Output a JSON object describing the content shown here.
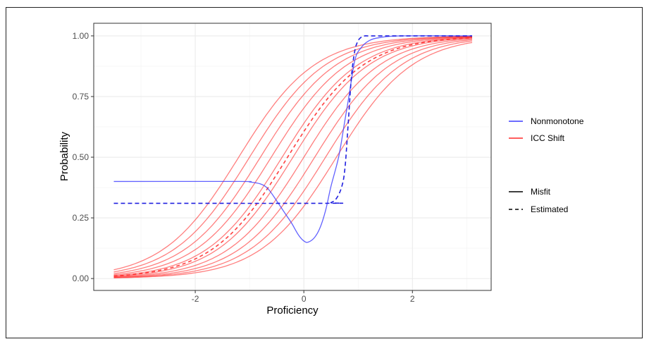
{
  "chart_data": {
    "type": "line",
    "title": "",
    "xlabel": "Proficiency",
    "ylabel": "Probability",
    "xlim": [
      -3.87,
      3.45
    ],
    "ylim": [
      -0.049,
      1.052
    ],
    "xticks": [
      {
        "v": -2,
        "label": "-2"
      },
      {
        "v": 0,
        "label": "0"
      },
      {
        "v": 2,
        "label": "2"
      }
    ],
    "yticks": [
      {
        "v": 0,
        "label": "0.00"
      },
      {
        "v": 0.25,
        "label": "0.25"
      },
      {
        "v": 0.5,
        "label": "0.50"
      },
      {
        "v": 0.75,
        "label": "0.75"
      },
      {
        "v": 1,
        "label": "1.00"
      }
    ],
    "grid": true,
    "legend_position": "right",
    "colors": {
      "nonmonotone": "#3b3bff",
      "icc_shift": "#ff2a2a"
    },
    "legend": {
      "color": [
        {
          "label": "Nonmonotone",
          "color": "#3b3bff"
        },
        {
          "label": "ICC Shift",
          "color": "#ff2a2a"
        }
      ],
      "linetype": [
        {
          "label": "Misfit",
          "dash": false
        },
        {
          "label": "Estimated",
          "dash": true
        }
      ]
    },
    "icc_shift": {
      "x_range": [
        -3.5,
        3.1
      ],
      "slope": 1.43,
      "misfit_locations": [
        -1.2,
        -1.0,
        -0.8,
        -0.6,
        -0.4,
        -0.2,
        0.0,
        0.2,
        0.4,
        0.6
      ],
      "estimated_location": -0.3
    },
    "nonmonotone": {
      "misfit": {
        "x": [
          -3.5,
          -1.2,
          -1.0,
          -0.8,
          -0.66,
          -0.5,
          -0.35,
          -0.23,
          -0.1,
          0.0,
          0.08,
          0.2,
          0.3,
          0.4,
          0.5,
          0.64,
          0.74,
          0.83,
          0.94,
          1.05,
          1.2,
          1.4,
          1.8,
          3.1
        ],
        "y": [
          0.4,
          0.4,
          0.398,
          0.39,
          0.37,
          0.32,
          0.27,
          0.23,
          0.18,
          0.155,
          0.15,
          0.17,
          0.21,
          0.28,
          0.38,
          0.5,
          0.63,
          0.75,
          0.9,
          0.95,
          0.98,
          0.993,
          1.0,
          1.0
        ]
      },
      "estimated": {
        "x": [
          -3.5,
          0.4,
          0.5,
          0.6,
          0.7,
          0.76,
          0.82,
          0.88,
          0.94,
          1.0,
          1.06,
          1.12,
          1.2,
          1.5,
          3.1
        ],
        "y": [
          0.31,
          0.31,
          0.313,
          0.33,
          0.38,
          0.46,
          0.65,
          0.84,
          0.94,
          0.98,
          0.995,
          1.0,
          1.0,
          1.0,
          1.0
        ]
      }
    }
  }
}
